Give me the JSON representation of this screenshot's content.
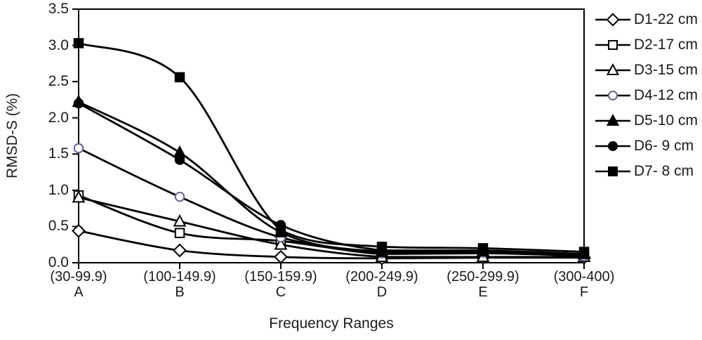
{
  "figure": {
    "background": "#ffffff",
    "line_color": "#000000",
    "text_color": "#1c1c1c",
    "open_marker_fill": "#ffffff",
    "d4_marker_stroke": "#6e6190"
  },
  "chart_data": {
    "type": "line",
    "title": "",
    "xlabel": "Frequency Ranges",
    "ylabel": "RMSD-S (%)",
    "ylim": [
      0,
      3.5
    ],
    "y_tick_labels": [
      "0.0",
      "0.5",
      "1.0",
      "1.5",
      "2.0",
      "2.5",
      "3.0",
      "3.5"
    ],
    "grid": false,
    "legend_position": "right",
    "categories": [
      {
        "range": "(30-99.9)",
        "letter": "A"
      },
      {
        "range": "(100-149.9)",
        "letter": "B"
      },
      {
        "range": "(150-159.9)",
        "letter": "C"
      },
      {
        "range": "(200-249.9)",
        "letter": "D"
      },
      {
        "range": "(250-299.9)",
        "letter": "E"
      },
      {
        "range": "(300-400)",
        "letter": "F"
      }
    ],
    "series": [
      {
        "name": "D1-22 cm",
        "marker": "diamond",
        "fill": "open",
        "color": "#000000",
        "marker_stroke": "#000000",
        "values": [
          0.44,
          0.17,
          0.08,
          0.06,
          0.07,
          0.07
        ]
      },
      {
        "name": "D2-17 cm",
        "marker": "square",
        "fill": "open",
        "color": "#000000",
        "marker_stroke": "#000000",
        "values": [
          0.93,
          0.41,
          0.3,
          0.12,
          0.13,
          0.1
        ]
      },
      {
        "name": "D3-15 cm",
        "marker": "triangle",
        "fill": "open",
        "color": "#000000",
        "marker_stroke": "#000000",
        "values": [
          0.9,
          0.57,
          0.25,
          0.08,
          0.08,
          0.08
        ]
      },
      {
        "name": "D4-12 cm",
        "marker": "circle",
        "fill": "open",
        "color": "#000000",
        "marker_stroke": "#6e6190",
        "values": [
          1.58,
          0.91,
          0.35,
          0.13,
          0.14,
          0.09
        ]
      },
      {
        "name": "D5-10 cm",
        "marker": "triangle",
        "fill": "filled",
        "color": "#000000",
        "marker_stroke": "#000000",
        "values": [
          2.22,
          1.52,
          0.42,
          0.15,
          0.16,
          0.12
        ]
      },
      {
        "name": "D6- 9 cm",
        "marker": "circle",
        "fill": "filled",
        "color": "#000000",
        "marker_stroke": "#000000",
        "values": [
          2.2,
          1.42,
          0.52,
          0.17,
          0.17,
          0.12
        ]
      },
      {
        "name": "D7- 8 cm",
        "marker": "square",
        "fill": "filled",
        "color": "#000000",
        "marker_stroke": "#000000",
        "values": [
          3.03,
          2.56,
          0.45,
          0.22,
          0.2,
          0.15
        ]
      }
    ]
  }
}
